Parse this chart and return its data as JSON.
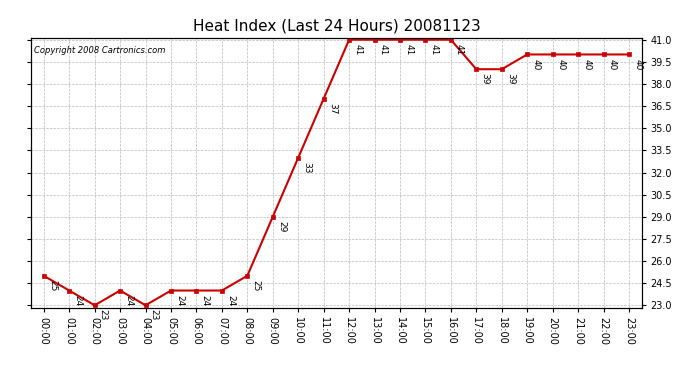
{
  "title": "Heat Index (Last 24 Hours) 20081123",
  "copyright": "Copyright 2008 Cartronics.com",
  "hours": [
    "00:00",
    "01:00",
    "02:00",
    "03:00",
    "04:00",
    "05:00",
    "06:00",
    "07:00",
    "08:00",
    "09:00",
    "10:00",
    "11:00",
    "12:00",
    "13:00",
    "14:00",
    "15:00",
    "16:00",
    "17:00",
    "18:00",
    "19:00",
    "20:00",
    "21:00",
    "22:00",
    "23:00"
  ],
  "values": [
    25,
    24,
    23,
    24,
    23,
    24,
    24,
    24,
    25,
    29,
    33,
    37,
    41,
    41,
    41,
    41,
    41,
    39,
    39,
    40,
    40,
    40,
    40,
    40
  ],
  "ylim_min": 23.0,
  "ylim_max": 41.0,
  "line_color": "#cc0000",
  "marker_color": "#cc0000",
  "bg_color": "#ffffff",
  "grid_color": "#bbbbbb",
  "title_fontsize": 11,
  "label_fontsize": 7,
  "copyright_fontsize": 6,
  "annotation_fontsize": 6.5,
  "ytick_values": [
    23.0,
    24.5,
    26.0,
    27.5,
    29.0,
    30.5,
    32.0,
    33.5,
    35.0,
    36.5,
    38.0,
    39.5,
    41.0
  ],
  "ytick_labels": [
    "23.0",
    "24.5",
    "26.0",
    "27.5",
    "29.0",
    "30.5",
    "32.0",
    "33.5",
    "35.0",
    "36.5",
    "38.0",
    "39.5",
    "41.0"
  ]
}
